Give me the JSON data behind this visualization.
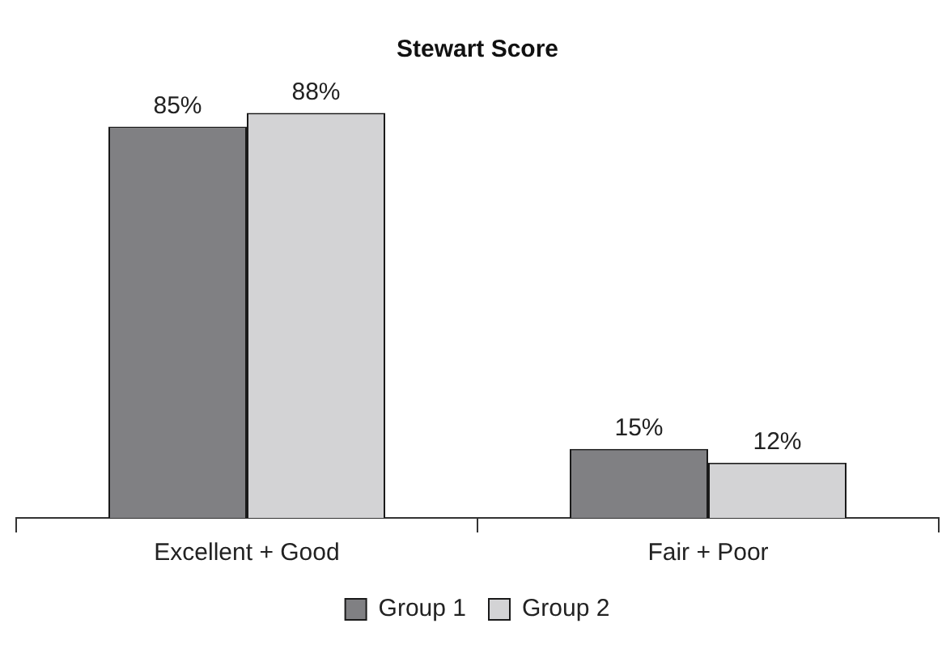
{
  "chart_data": {
    "type": "bar",
    "title": "Stewart Score",
    "tick_labels": "x",
    "categories": [
      "Excellent + Good",
      "Fair + Poor"
    ],
    "series": [
      {
        "name": "Group 1",
        "color": "#808083",
        "values": [
          85,
          15
        ],
        "value_labels": [
          "85%",
          "15%"
        ]
      },
      {
        "name": "Group 2",
        "color": "#d3d3d5",
        "values": [
          88,
          12
        ],
        "value_labels": [
          "88%",
          "12%"
        ]
      }
    ],
    "legend": "bottom",
    "grid": false
  }
}
